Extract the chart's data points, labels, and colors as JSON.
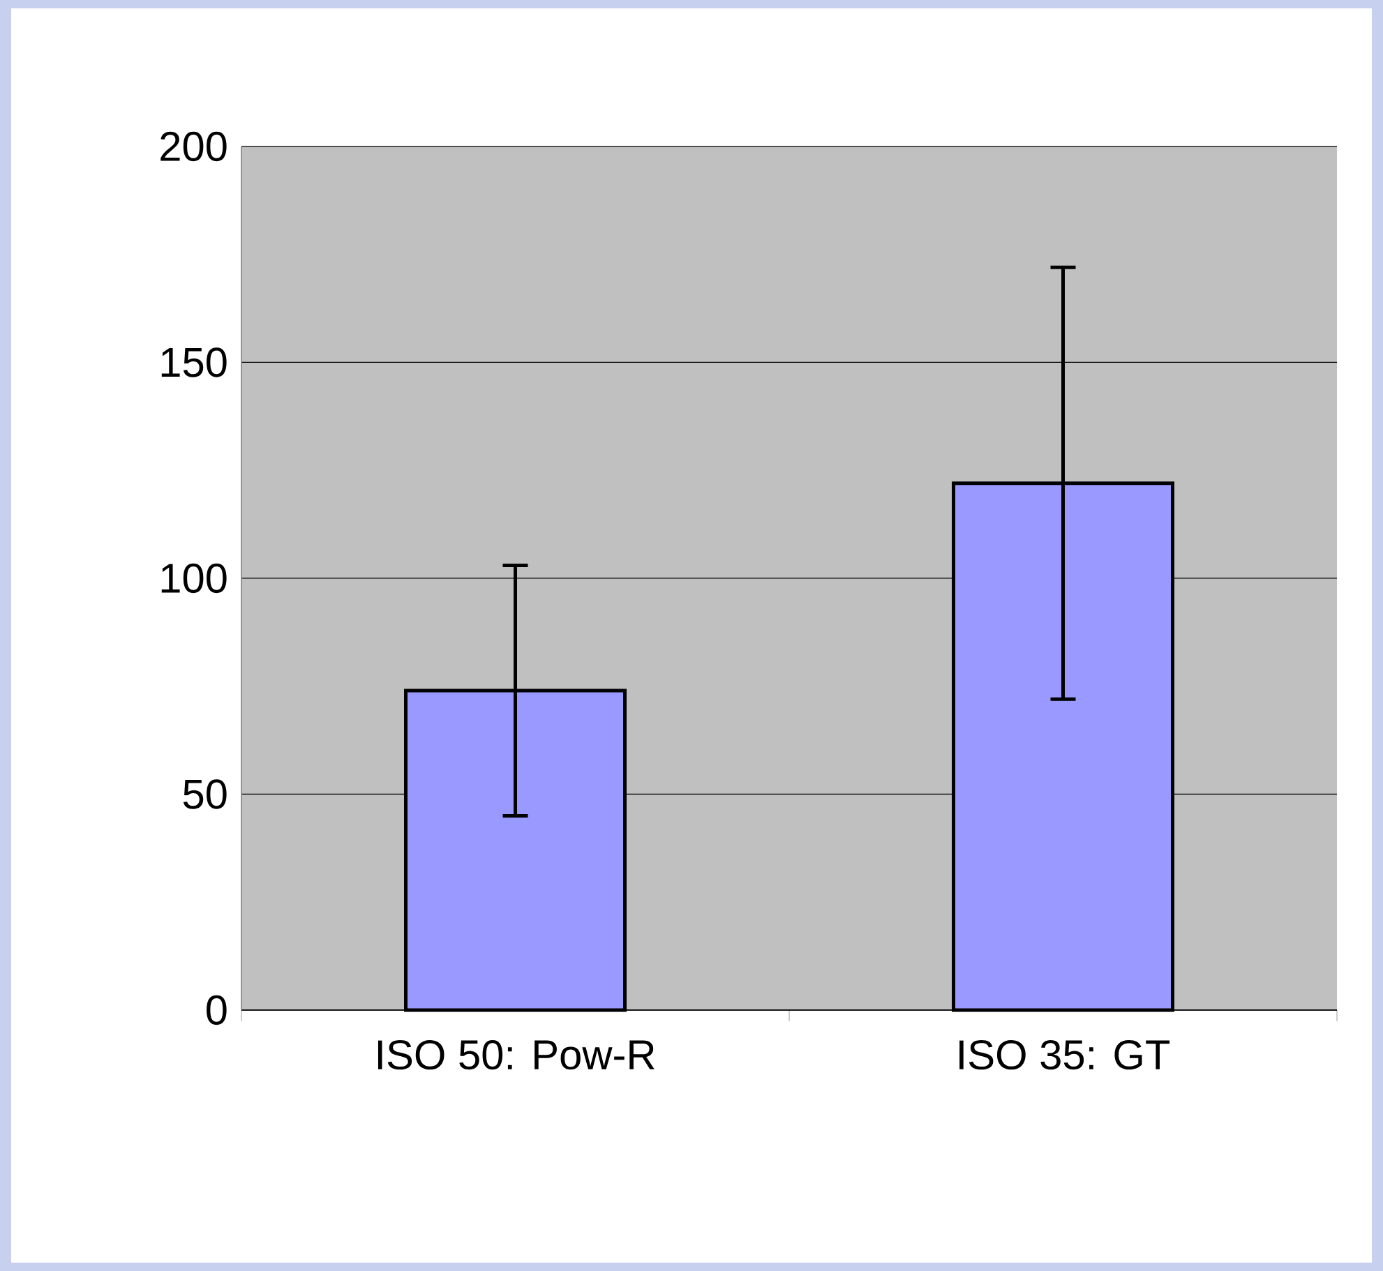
{
  "chart_data": {
    "type": "bar",
    "categories": [
      "ISO 50: Pow-R",
      "ISO 35: GT"
    ],
    "values": [
      74,
      122
    ],
    "errors": [
      29,
      50
    ],
    "color": "#9999ff",
    "ylim": [
      0,
      200
    ],
    "yticks": [
      0,
      50,
      100,
      150,
      200
    ],
    "grid": "y"
  }
}
